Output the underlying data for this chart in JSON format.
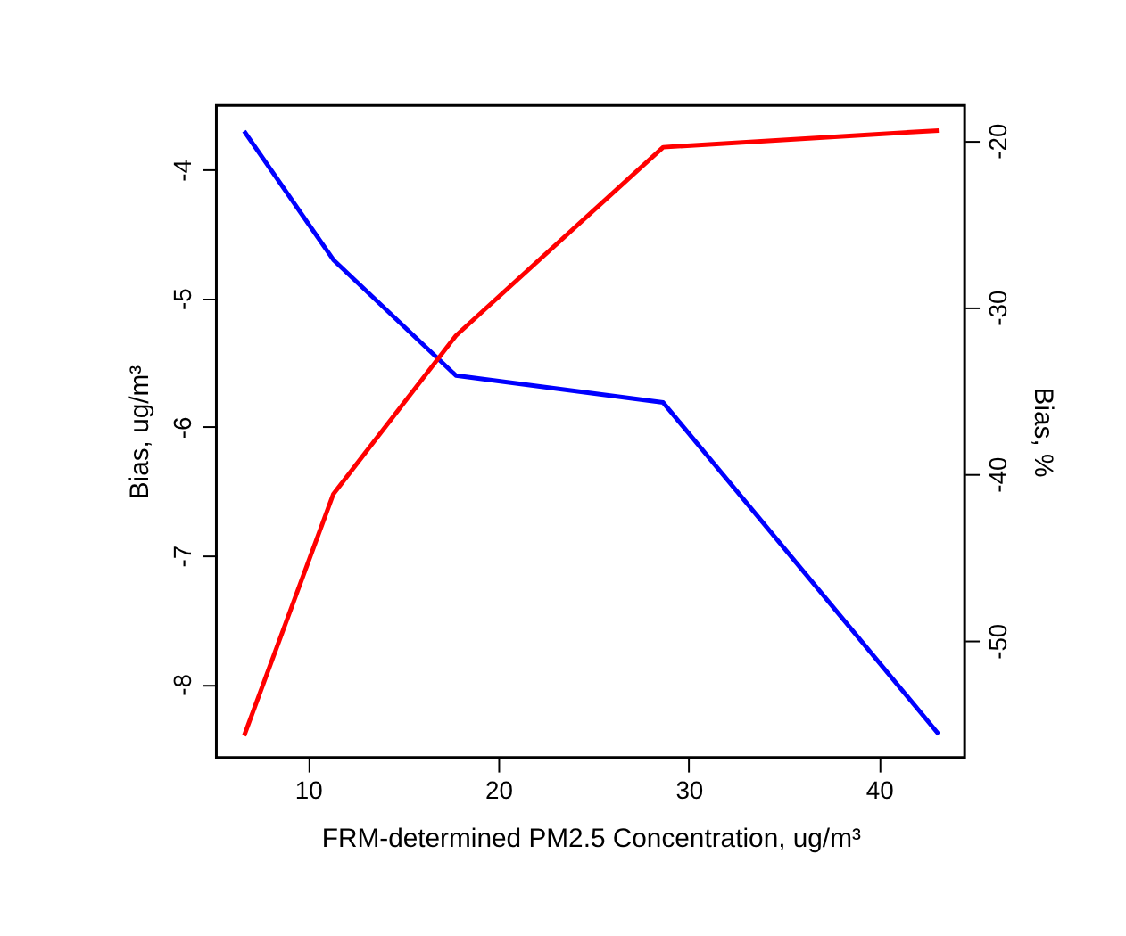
{
  "chart_data": {
    "type": "line",
    "xlabel": "FRM-determined PM2.5 Concentration, ug/m³",
    "ylabel": "Bias, ug/m³",
    "y2label": "Bias, %",
    "x": [
      6.64,
      11.33,
      17.77,
      28.66,
      43.14
    ],
    "series": [
      {
        "color": "#0000ff",
        "values": [
          -3.7,
          -4.7,
          -5.6,
          -5.81,
          -8.39
        ]
      },
      {
        "color": "#ff0000",
        "axis": "y2",
        "values": [
          -55.7,
          -41.2,
          -31.7,
          -20.4,
          -19.4
        ]
      }
    ],
    "xlim": [
      5.18,
      44.5
    ],
    "xticks": [
      10,
      20,
      30,
      40
    ],
    "ylim": [
      -8.57,
      -3.5
    ],
    "yticks": [
      -8,
      -7,
      -6,
      -5,
      -4
    ],
    "y2lim": [
      -57.0,
      -17.9
    ],
    "y2ticks": [
      -50,
      -40,
      -30,
      -20
    ],
    "grid": false,
    "marker": "none",
    "line_style": "solid"
  }
}
